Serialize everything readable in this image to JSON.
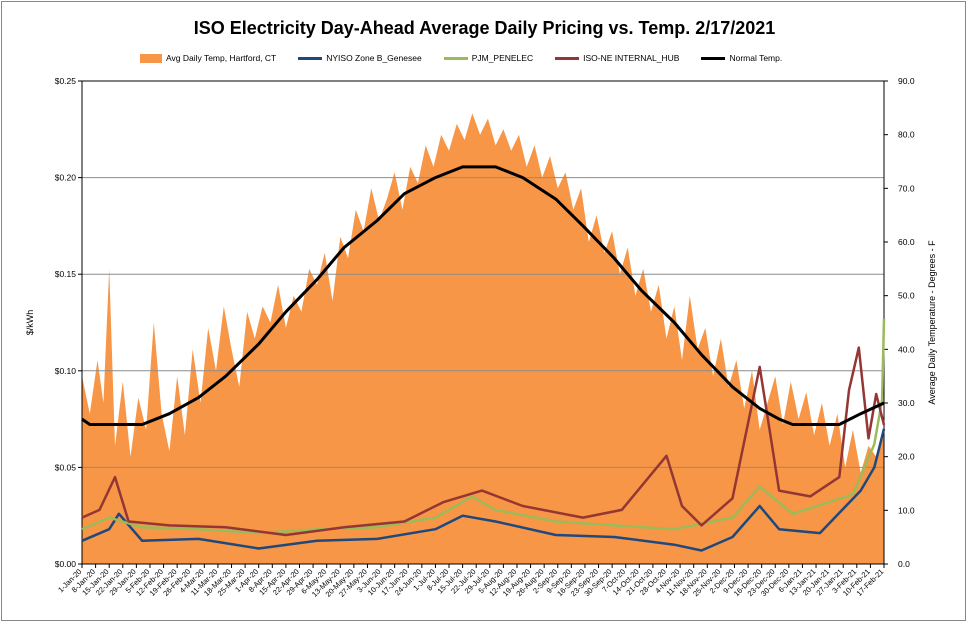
{
  "chart_data": {
    "type": "line",
    "title": "ISO Electricity Day-Ahead Average Daily Pricing vs. Temp. 2/17/2021",
    "ylabel": "$/kWh",
    "y2label": "Average Daily Temperature - Degrees - F",
    "ylim": [
      0,
      0.25
    ],
    "y2lim": [
      0,
      90
    ],
    "yticks": [
      "$0.00",
      "$0.05",
      "$0.10",
      "$0.15",
      "$0.20",
      "$0.25"
    ],
    "y2ticks": [
      "0.0",
      "10.0",
      "20.0",
      "30.0",
      "40.0",
      "50.0",
      "60.0",
      "70.0",
      "80.0",
      "90.0"
    ],
    "grid": "horizontal",
    "legend_position": "top",
    "x_start": "2020-01-01",
    "x_end": "2021-02-17",
    "xticks": [
      "1-Jan-20",
      "8-Jan-20",
      "15-Jan-20",
      "22-Jan-20",
      "29-Jan-20",
      "5-Feb-20",
      "12-Feb-20",
      "19-Feb-20",
      "26-Feb-20",
      "4-Mar-20",
      "11-Mar-20",
      "18-Mar-20",
      "25-Mar-20",
      "1-Apr-20",
      "8-Apr-20",
      "15-Apr-20",
      "22-Apr-20",
      "29-Apr-20",
      "6-May-20",
      "13-May-20",
      "20-May-20",
      "27-May-20",
      "3-Jun-20",
      "10-Jun-20",
      "17-Jun-20",
      "24-Jun-20",
      "1-Jul-20",
      "8-Jul-20",
      "15-Jul-20",
      "22-Jul-20",
      "29-Jul-20",
      "5-Aug-20",
      "12-Aug-20",
      "19-Aug-20",
      "26-Aug-20",
      "2-Sep-20",
      "9-Sep-20",
      "16-Sep-20",
      "23-Sep-20",
      "30-Sep-20",
      "7-Oct-20",
      "14-Oct-20",
      "21-Oct-20",
      "28-Oct-20",
      "4-Nov-20",
      "11-Nov-20",
      "18-Nov-20",
      "25-Nov-20",
      "2-Dec-20",
      "9-Dec-20",
      "16-Dec-20",
      "23-Dec-20",
      "30-Dec-20",
      "6-Jan-21",
      "13-Jan-21",
      "20-Jan-21",
      "27-Jan-21",
      "3-Feb-21",
      "10-Feb-21",
      "17-Feb-21"
    ],
    "series": [
      {
        "name": "Avg Daily Temp, Hartford, CT",
        "kind": "area",
        "axis": "y2",
        "color": "#F79646",
        "points": [
          [
            "2020-01-01",
            35
          ],
          [
            "2020-01-05",
            28
          ],
          [
            "2020-01-09",
            38
          ],
          [
            "2020-01-12",
            30
          ],
          [
            "2020-01-15",
            55
          ],
          [
            "2020-01-18",
            22
          ],
          [
            "2020-01-22",
            34
          ],
          [
            "2020-01-26",
            20
          ],
          [
            "2020-01-30",
            31
          ],
          [
            "2020-02-03",
            25
          ],
          [
            "2020-02-07",
            45
          ],
          [
            "2020-02-11",
            28
          ],
          [
            "2020-02-15",
            21
          ],
          [
            "2020-02-19",
            35
          ],
          [
            "2020-02-23",
            24
          ],
          [
            "2020-02-27",
            40
          ],
          [
            "2020-03-02",
            30
          ],
          [
            "2020-03-06",
            44
          ],
          [
            "2020-03-10",
            36
          ],
          [
            "2020-03-14",
            48
          ],
          [
            "2020-03-18",
            40
          ],
          [
            "2020-03-22",
            33
          ],
          [
            "2020-03-26",
            47
          ],
          [
            "2020-03-30",
            42
          ],
          [
            "2020-04-03",
            48
          ],
          [
            "2020-04-07",
            45
          ],
          [
            "2020-04-11",
            52
          ],
          [
            "2020-04-15",
            44
          ],
          [
            "2020-04-19",
            50
          ],
          [
            "2020-04-23",
            47
          ],
          [
            "2020-04-27",
            55
          ],
          [
            "2020-05-01",
            52
          ],
          [
            "2020-05-05",
            58
          ],
          [
            "2020-05-09",
            49
          ],
          [
            "2020-05-13",
            61
          ],
          [
            "2020-05-17",
            57
          ],
          [
            "2020-05-21",
            66
          ],
          [
            "2020-05-25",
            62
          ],
          [
            "2020-05-29",
            70
          ],
          [
            "2020-06-02",
            64
          ],
          [
            "2020-06-06",
            68
          ],
          [
            "2020-06-10",
            73
          ],
          [
            "2020-06-14",
            66
          ],
          [
            "2020-06-18",
            74
          ],
          [
            "2020-06-22",
            71
          ],
          [
            "2020-06-26",
            78
          ],
          [
            "2020-06-30",
            74
          ],
          [
            "2020-07-04",
            80
          ],
          [
            "2020-07-08",
            77
          ],
          [
            "2020-07-12",
            82
          ],
          [
            "2020-07-16",
            79
          ],
          [
            "2020-07-20",
            84
          ],
          [
            "2020-07-24",
            80
          ],
          [
            "2020-07-28",
            83
          ],
          [
            "2020-08-01",
            78
          ],
          [
            "2020-08-05",
            81
          ],
          [
            "2020-08-09",
            77
          ],
          [
            "2020-08-13",
            80
          ],
          [
            "2020-08-17",
            74
          ],
          [
            "2020-08-21",
            78
          ],
          [
            "2020-08-25",
            72
          ],
          [
            "2020-08-29",
            76
          ],
          [
            "2020-09-02",
            70
          ],
          [
            "2020-09-06",
            73
          ],
          [
            "2020-09-10",
            66
          ],
          [
            "2020-09-14",
            70
          ],
          [
            "2020-09-18",
            60
          ],
          [
            "2020-09-22",
            65
          ],
          [
            "2020-09-26",
            58
          ],
          [
            "2020-09-30",
            62
          ],
          [
            "2020-10-04",
            54
          ],
          [
            "2020-10-08",
            59
          ],
          [
            "2020-10-12",
            50
          ],
          [
            "2020-10-16",
            55
          ],
          [
            "2020-10-20",
            47
          ],
          [
            "2020-10-24",
            52
          ],
          [
            "2020-10-28",
            42
          ],
          [
            "2020-11-01",
            48
          ],
          [
            "2020-11-05",
            38
          ],
          [
            "2020-11-09",
            50
          ],
          [
            "2020-11-13",
            40
          ],
          [
            "2020-11-17",
            44
          ],
          [
            "2020-11-21",
            35
          ],
          [
            "2020-11-25",
            42
          ],
          [
            "2020-11-29",
            33
          ],
          [
            "2020-12-03",
            38
          ],
          [
            "2020-12-07",
            29
          ],
          [
            "2020-12-11",
            36
          ],
          [
            "2020-12-15",
            25
          ],
          [
            "2020-12-19",
            30
          ],
          [
            "2020-12-23",
            35
          ],
          [
            "2020-12-27",
            26
          ],
          [
            "2020-12-31",
            34
          ],
          [
            "2021-01-04",
            27
          ],
          [
            "2021-01-08",
            32
          ],
          [
            "2021-01-12",
            24
          ],
          [
            "2021-01-16",
            30
          ],
          [
            "2021-01-20",
            22
          ],
          [
            "2021-01-24",
            28
          ],
          [
            "2021-01-28",
            18
          ],
          [
            "2021-02-01",
            25
          ],
          [
            "2021-02-05",
            17
          ],
          [
            "2021-02-09",
            22
          ],
          [
            "2021-02-13",
            20
          ],
          [
            "2021-02-17",
            24
          ]
        ]
      },
      {
        "name": "NYISO Zone B_Genesee",
        "kind": "line",
        "axis": "y",
        "color": "#1F497D",
        "points": [
          [
            "2020-01-01",
            0.012
          ],
          [
            "2020-01-15",
            0.018
          ],
          [
            "2020-01-20",
            0.026
          ],
          [
            "2020-02-01",
            0.012
          ],
          [
            "2020-03-01",
            0.013
          ],
          [
            "2020-04-01",
            0.008
          ],
          [
            "2020-05-01",
            0.012
          ],
          [
            "2020-06-01",
            0.013
          ],
          [
            "2020-07-01",
            0.018
          ],
          [
            "2020-07-15",
            0.025
          ],
          [
            "2020-08-01",
            0.022
          ],
          [
            "2020-09-01",
            0.015
          ],
          [
            "2020-10-01",
            0.014
          ],
          [
            "2020-11-01",
            0.01
          ],
          [
            "2020-11-15",
            0.007
          ],
          [
            "2020-12-01",
            0.014
          ],
          [
            "2020-12-15",
            0.03
          ],
          [
            "2020-12-25",
            0.018
          ],
          [
            "2021-01-15",
            0.016
          ],
          [
            "2021-02-05",
            0.038
          ],
          [
            "2021-02-12",
            0.05
          ],
          [
            "2021-02-17",
            0.07
          ]
        ]
      },
      {
        "name": "PJM_PENELEC",
        "kind": "line",
        "axis": "y",
        "color": "#9BBB59",
        "points": [
          [
            "2020-01-01",
            0.018
          ],
          [
            "2020-01-15",
            0.024
          ],
          [
            "2020-02-01",
            0.019
          ],
          [
            "2020-03-01",
            0.018
          ],
          [
            "2020-04-01",
            0.016
          ],
          [
            "2020-05-01",
            0.018
          ],
          [
            "2020-06-01",
            0.019
          ],
          [
            "2020-07-01",
            0.024
          ],
          [
            "2020-07-20",
            0.035
          ],
          [
            "2020-08-01",
            0.028
          ],
          [
            "2020-09-01",
            0.022
          ],
          [
            "2020-10-01",
            0.02
          ],
          [
            "2020-11-01",
            0.018
          ],
          [
            "2020-12-01",
            0.024
          ],
          [
            "2020-12-15",
            0.04
          ],
          [
            "2021-01-01",
            0.026
          ],
          [
            "2021-02-01",
            0.036
          ],
          [
            "2021-02-12",
            0.062
          ],
          [
            "2021-02-16",
            0.085
          ],
          [
            "2021-02-17",
            0.127
          ]
        ]
      },
      {
        "name": "ISO-NE INTERNAL_HUB",
        "kind": "line",
        "axis": "y",
        "color": "#943634",
        "points": [
          [
            "2020-01-01",
            0.024
          ],
          [
            "2020-01-10",
            0.028
          ],
          [
            "2020-01-18",
            0.045
          ],
          [
            "2020-01-25",
            0.022
          ],
          [
            "2020-02-15",
            0.02
          ],
          [
            "2020-03-15",
            0.019
          ],
          [
            "2020-04-15",
            0.015
          ],
          [
            "2020-05-15",
            0.019
          ],
          [
            "2020-06-15",
            0.022
          ],
          [
            "2020-07-05",
            0.032
          ],
          [
            "2020-07-25",
            0.038
          ],
          [
            "2020-08-15",
            0.03
          ],
          [
            "2020-09-15",
            0.024
          ],
          [
            "2020-10-05",
            0.028
          ],
          [
            "2020-10-28",
            0.056
          ],
          [
            "2020-11-05",
            0.03
          ],
          [
            "2020-11-15",
            0.02
          ],
          [
            "2020-12-01",
            0.034
          ],
          [
            "2020-12-15",
            0.102
          ],
          [
            "2020-12-25",
            0.038
          ],
          [
            "2021-01-10",
            0.035
          ],
          [
            "2021-01-25",
            0.045
          ],
          [
            "2021-01-30",
            0.09
          ],
          [
            "2021-02-04",
            0.112
          ],
          [
            "2021-02-09",
            0.065
          ],
          [
            "2021-02-13",
            0.088
          ],
          [
            "2021-02-17",
            0.072
          ]
        ]
      },
      {
        "name": "Normal Temp.",
        "kind": "line",
        "axis": "y2",
        "color": "#000000",
        "points": [
          [
            "2020-01-01",
            27
          ],
          [
            "2020-01-05",
            26
          ],
          [
            "2020-02-01",
            26
          ],
          [
            "2020-02-15",
            28
          ],
          [
            "2020-03-01",
            31
          ],
          [
            "2020-03-15",
            35
          ],
          [
            "2020-04-01",
            41
          ],
          [
            "2020-04-15",
            47
          ],
          [
            "2020-05-01",
            53
          ],
          [
            "2020-05-15",
            59
          ],
          [
            "2020-06-01",
            64
          ],
          [
            "2020-06-15",
            69
          ],
          [
            "2020-07-01",
            72
          ],
          [
            "2020-07-15",
            74
          ],
          [
            "2020-08-01",
            74
          ],
          [
            "2020-08-15",
            72
          ],
          [
            "2020-09-01",
            68
          ],
          [
            "2020-09-15",
            63
          ],
          [
            "2020-10-01",
            57
          ],
          [
            "2020-10-15",
            51
          ],
          [
            "2020-11-01",
            45
          ],
          [
            "2020-11-15",
            39
          ],
          [
            "2020-12-01",
            33
          ],
          [
            "2020-12-15",
            29
          ],
          [
            "2020-12-25",
            27
          ],
          [
            "2021-01-01",
            26
          ],
          [
            "2021-01-25",
            26
          ],
          [
            "2021-02-05",
            28
          ],
          [
            "2021-02-17",
            30
          ]
        ]
      }
    ]
  }
}
